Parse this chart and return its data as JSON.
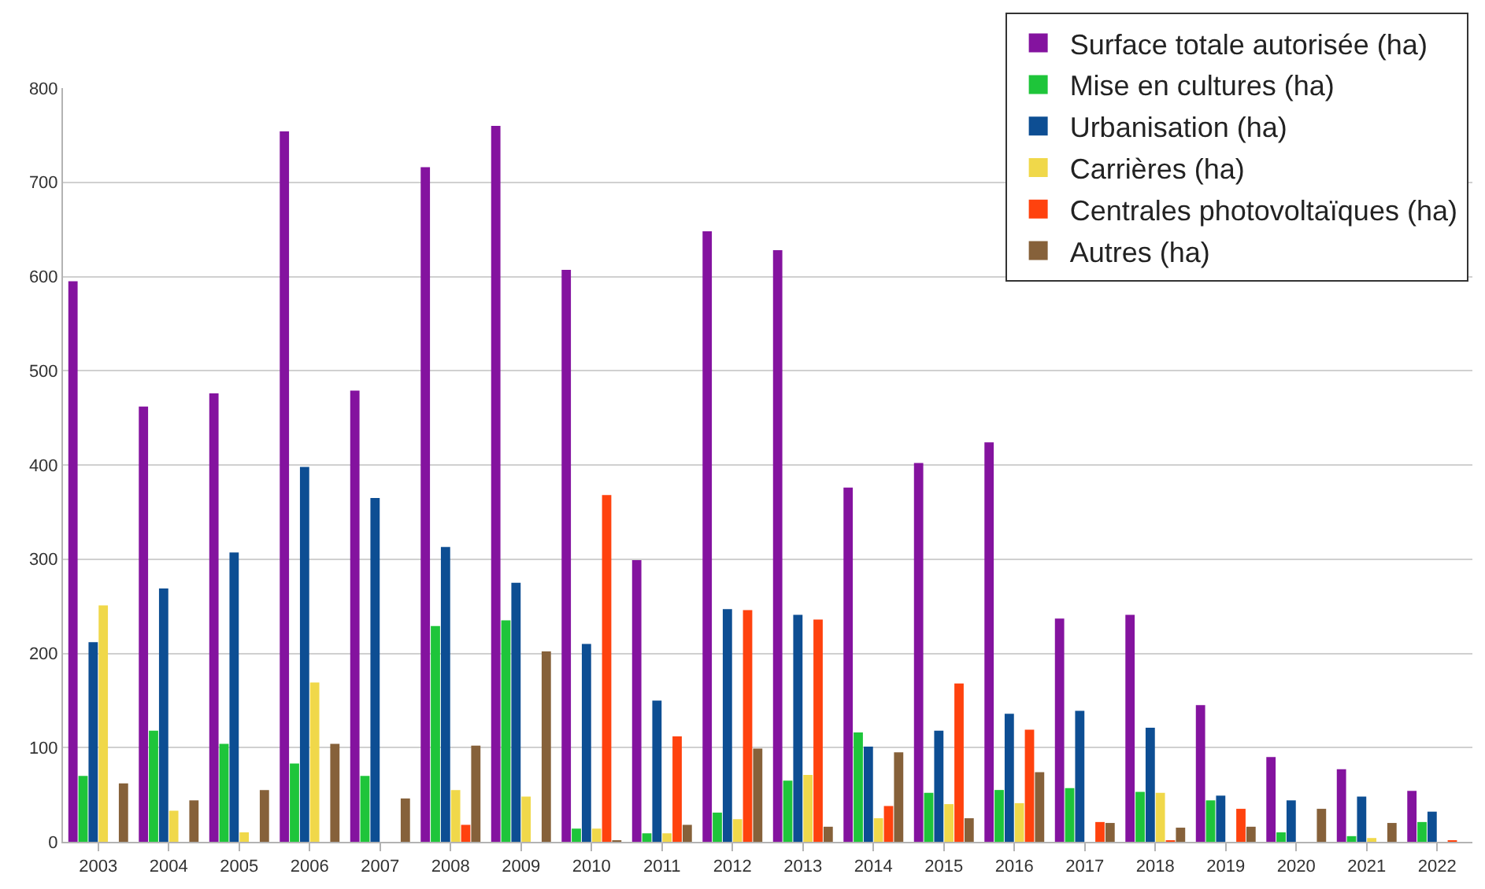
{
  "chart_data": {
    "type": "bar",
    "categories": [
      "2003",
      "2004",
      "2005",
      "2006",
      "2007",
      "2008",
      "2009",
      "2010",
      "2011",
      "2012",
      "2013",
      "2014",
      "2015",
      "2016",
      "2017",
      "2018",
      "2019",
      "2020",
      "2021",
      "2022"
    ],
    "series": [
      {
        "name": "Surface totale autorisée (ha)",
        "color": "#84139f",
        "values": [
          595,
          462,
          476,
          754,
          479,
          716,
          760,
          607,
          299,
          648,
          628,
          376,
          402,
          424,
          237,
          241,
          145,
          90,
          77,
          54
        ]
      },
      {
        "name": "Mise en cultures (ha)",
        "color": "#1ec53a",
        "values": [
          70,
          118,
          104,
          83,
          70,
          229,
          235,
          14,
          9,
          31,
          65,
          116,
          52,
          55,
          57,
          53,
          44,
          10,
          6,
          21
        ]
      },
      {
        "name": "Urbanisation (ha)",
        "color": "#0d4e93",
        "values": [
          212,
          269,
          307,
          398,
          365,
          313,
          275,
          210,
          150,
          247,
          241,
          101,
          118,
          136,
          139,
          121,
          49,
          44,
          48,
          32
        ]
      },
      {
        "name": "Carrières (ha)",
        "color": "#f0d84a",
        "values": [
          251,
          33,
          10,
          169,
          0,
          55,
          48,
          14,
          9,
          24,
          71,
          25,
          40,
          41,
          0,
          52,
          0,
          0,
          4,
          0
        ]
      },
      {
        "name": "Centrales photovoltaïques (ha)",
        "color": "#ff420e",
        "values": [
          0,
          0,
          0,
          0,
          0,
          18,
          0,
          368,
          112,
          246,
          236,
          38,
          168,
          119,
          21,
          1,
          35,
          0,
          0,
          1
        ]
      },
      {
        "name": "Autres (ha)",
        "color": "#86613a",
        "values": [
          62,
          44,
          55,
          104,
          46,
          102,
          202,
          1,
          18,
          99,
          16,
          95,
          25,
          74,
          20,
          15,
          16,
          35,
          20,
          0
        ]
      }
    ],
    "ylim": [
      0,
      800
    ],
    "yticks": [
      0,
      100,
      200,
      300,
      400,
      500,
      600,
      700,
      800
    ],
    "grid": "y",
    "legend": "top right"
  }
}
